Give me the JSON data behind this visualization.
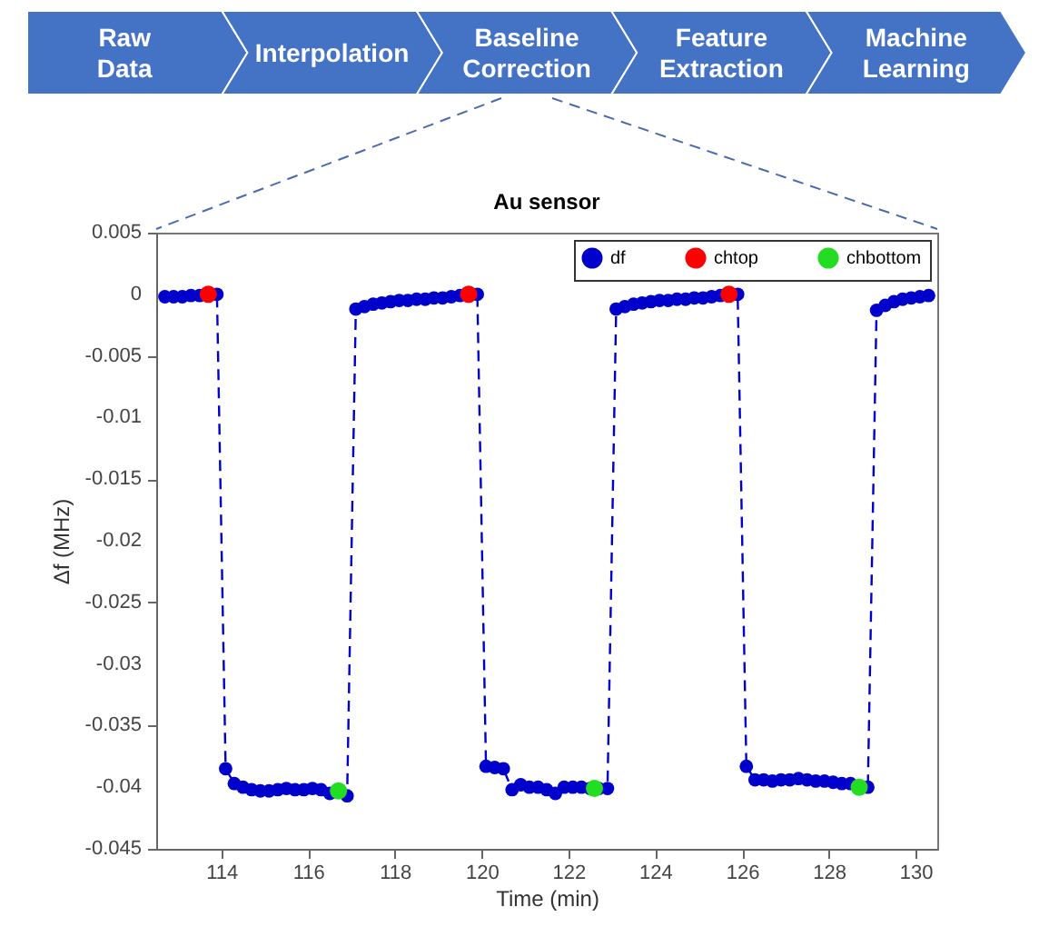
{
  "chart_data": {
    "type": "line",
    "title": "Au sensor",
    "xlabel": "Time (min)",
    "ylabel": "Δf (MHz)",
    "annotations": [
      "Raw Data",
      "Interpolation",
      "Baseline Correction",
      "Feature Extraction",
      "Machine Learning"
    ],
    "xlim": [
      112.5,
      130.5
    ],
    "xticks": [
      114,
      116,
      118,
      120,
      122,
      124,
      126,
      128,
      130
    ],
    "ylim": [
      -0.045,
      0.005
    ],
    "yticks": [
      0.005,
      0,
      -0.005,
      -0.01,
      -0.015,
      -0.02,
      -0.025,
      -0.03,
      -0.035,
      -0.04,
      -0.045
    ],
    "grid": false,
    "legend": "top right",
    "marker": "circle",
    "series": [
      {
        "name": "df",
        "line_style": "dashed",
        "color": "#0000cc",
        "x": [
          112.7,
          112.9,
          113.1,
          113.3,
          113.5,
          113.7,
          113.9,
          114.1,
          114.3,
          114.5,
          114.7,
          114.9,
          115.1,
          115.3,
          115.5,
          115.7,
          115.9,
          116.1,
          116.3,
          116.5,
          116.7,
          116.9,
          117.1,
          117.3,
          117.5,
          117.7,
          117.9,
          118.1,
          118.3,
          118.5,
          118.7,
          118.9,
          119.1,
          119.3,
          119.5,
          119.7,
          119.9,
          120.1,
          120.3,
          120.5,
          120.7,
          120.9,
          121.1,
          121.3,
          121.5,
          121.7,
          121.9,
          122.1,
          122.3,
          122.5,
          122.7,
          122.9,
          123.1,
          123.3,
          123.5,
          123.7,
          123.9,
          124.1,
          124.3,
          124.5,
          124.7,
          124.9,
          125.1,
          125.3,
          125.5,
          125.7,
          125.9,
          126.1,
          126.3,
          126.5,
          126.7,
          126.9,
          127.1,
          127.3,
          127.5,
          127.7,
          127.9,
          128.1,
          128.3,
          128.5,
          128.7,
          128.9,
          129.1,
          129.3,
          129.5,
          129.7,
          129.9,
          130.1,
          130.3
        ],
        "values": [
          -0.0002,
          -0.0002,
          -0.0002,
          -0.0001,
          -0.0001,
          0,
          0,
          -0.0385,
          -0.0397,
          -0.04,
          -0.0402,
          -0.0403,
          -0.0403,
          -0.0402,
          -0.0401,
          -0.0402,
          -0.0402,
          -0.0401,
          -0.0402,
          -0.0405,
          -0.0403,
          -0.0407,
          -0.0012,
          -0.001,
          -0.0008,
          -0.0007,
          -0.0006,
          -0.0005,
          -0.0005,
          -0.0004,
          -0.0004,
          -0.0003,
          -0.0003,
          -0.0002,
          -0.0001,
          0,
          0,
          -0.0383,
          -0.0384,
          -0.0385,
          -0.0402,
          -0.0398,
          -0.04,
          -0.04,
          -0.0402,
          -0.0405,
          -0.04,
          -0.04,
          -0.04,
          -0.0401,
          -0.0401,
          -0.0401,
          -0.0012,
          -0.001,
          -0.0008,
          -0.0007,
          -0.0006,
          -0.0005,
          -0.0005,
          -0.0004,
          -0.0004,
          -0.0003,
          -0.0003,
          -0.0002,
          -0.0001,
          0,
          0,
          -0.0383,
          -0.0394,
          -0.0394,
          -0.0395,
          -0.0394,
          -0.0394,
          -0.0393,
          -0.0394,
          -0.0395,
          -0.0395,
          -0.0396,
          -0.0397,
          -0.0397,
          -0.04,
          -0.04,
          -0.0013,
          -0.0009,
          -0.0006,
          -0.0004,
          -0.0003,
          -0.0002,
          -0.0001
        ]
      },
      {
        "name": "chtop",
        "type": "scatter",
        "color": "#ff0000",
        "x": [
          113.7,
          119.7,
          125.7
        ],
        "values": [
          0,
          0,
          0
        ]
      },
      {
        "name": "chbottom",
        "type": "scatter",
        "color": "#22dd22",
        "x": [
          116.7,
          122.6,
          128.7
        ],
        "values": [
          -0.0403,
          -0.0401,
          -0.04
        ]
      }
    ]
  }
}
